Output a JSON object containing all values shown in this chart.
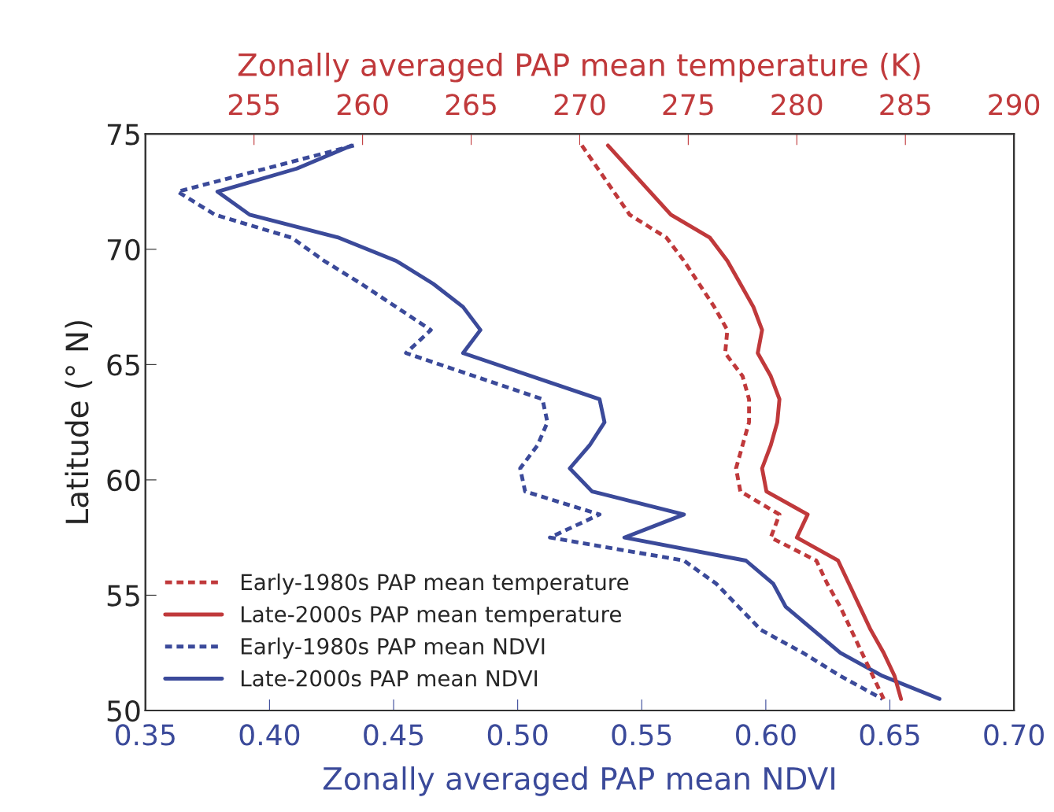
{
  "chart_data": {
    "type": "line",
    "xlabel": "Zonally averaged PAP mean NDVI",
    "x2label": "Zonally averaged PAP mean temperature (K)",
    "ylabel": "Latitude (° N)",
    "xlim": [
      0.35,
      0.7
    ],
    "xticks": [
      {
        "value": 0.35,
        "label": "0.35"
      },
      {
        "value": 0.4,
        "label": "0.40"
      },
      {
        "value": 0.45,
        "label": "0.45"
      },
      {
        "value": 0.5,
        "label": "0.50"
      },
      {
        "value": 0.55,
        "label": "0.55"
      },
      {
        "value": 0.6,
        "label": "0.60"
      },
      {
        "value": 0.65,
        "label": "0.65"
      },
      {
        "value": 0.7,
        "label": "0.70"
      }
    ],
    "x2lim": [
      250,
      290
    ],
    "x2ticks": [
      255,
      260,
      265,
      270,
      275,
      280,
      285,
      290
    ],
    "ylim": [
      50,
      75
    ],
    "yticks": [
      50,
      55,
      60,
      65,
      70,
      75
    ],
    "grid": false,
    "legend": "bottom left",
    "series": [
      {
        "name": "Early-1980s PAP mean temperature",
        "color": "#c0393b",
        "axis": "x2",
        "line_style": "dashed",
        "x": [
          270.1,
          272.3,
          274.0,
          274.8,
          275.5,
          276.2,
          276.8,
          276.7,
          277.5,
          277.8,
          277.8,
          277.5,
          277.2,
          277.4,
          279.2,
          278.8,
          280.9,
          281.4,
          282.0,
          282.5,
          283.0,
          283.5,
          284.0
        ],
        "values": [
          74.5,
          71.5,
          70.5,
          69.5,
          68.5,
          67.5,
          66.5,
          65.5,
          64.5,
          63.5,
          62.5,
          61.5,
          60.5,
          59.5,
          58.5,
          57.5,
          56.5,
          55.5,
          54.5,
          53.5,
          52.5,
          51.5,
          50.5
        ]
      },
      {
        "name": "Late-2000s PAP mean temperature",
        "color": "#c0393b",
        "axis": "x2",
        "line_style": "solid",
        "x": [
          271.3,
          274.2,
          276.0,
          276.8,
          277.4,
          278.0,
          278.4,
          278.2,
          278.8,
          279.2,
          279.1,
          278.8,
          278.4,
          278.6,
          280.5,
          280.0,
          281.9,
          282.4,
          282.9,
          283.4,
          284.0,
          284.5,
          284.8
        ],
        "values": [
          74.5,
          71.5,
          70.5,
          69.5,
          68.5,
          67.5,
          66.5,
          65.5,
          64.5,
          63.5,
          62.5,
          61.5,
          60.5,
          59.5,
          58.5,
          57.5,
          56.5,
          55.5,
          54.5,
          53.5,
          52.5,
          51.5,
          50.5
        ]
      },
      {
        "name": "Early-1980s PAP mean NDVI",
        "color": "#3b4a9a",
        "line_style": "dashed",
        "x": [
          0.434,
          0.363,
          0.378,
          0.409,
          0.422,
          0.437,
          0.451,
          0.465,
          0.455,
          0.51,
          0.512,
          0.508,
          0.501,
          0.503,
          0.533,
          0.513,
          0.567,
          0.58,
          0.589,
          0.598,
          0.615,
          0.63,
          0.647
        ],
        "values": [
          74.5,
          72.5,
          71.5,
          70.5,
          69.5,
          68.5,
          67.5,
          66.5,
          65.5,
          63.5,
          62.5,
          61.5,
          60.5,
          59.5,
          58.5,
          57.5,
          56.5,
          55.5,
          54.5,
          53.5,
          52.5,
          51.5,
          50.5
        ]
      },
      {
        "name": "Late-2000s PAP mean NDVI",
        "color": "#3b4a9a",
        "line_style": "solid",
        "x": [
          0.433,
          0.411,
          0.379,
          0.392,
          0.428,
          0.451,
          0.466,
          0.478,
          0.485,
          0.478,
          0.533,
          0.535,
          0.529,
          0.521,
          0.53,
          0.567,
          0.543,
          0.592,
          0.603,
          0.608,
          0.619,
          0.63,
          0.647,
          0.67
        ],
        "values": [
          74.5,
          73.5,
          72.5,
          71.5,
          70.5,
          69.5,
          68.5,
          67.5,
          66.5,
          65.5,
          63.5,
          62.5,
          61.5,
          60.5,
          59.5,
          58.5,
          57.5,
          56.5,
          55.5,
          54.5,
          53.5,
          52.5,
          51.5,
          50.5
        ]
      }
    ]
  }
}
